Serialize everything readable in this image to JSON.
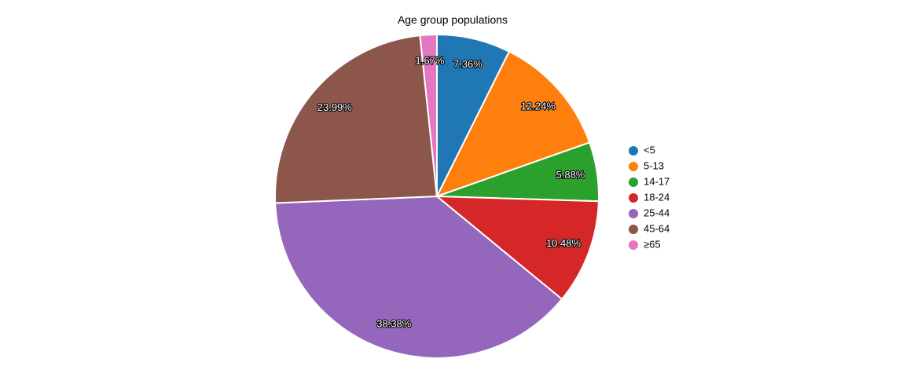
{
  "chart_data": {
    "type": "pie",
    "title": "Age group populations",
    "categories": [
      "<5",
      "5-13",
      "14-17",
      "18-24",
      "25-44",
      "45-64",
      "≥65"
    ],
    "values": [
      7.36,
      12.24,
      5.88,
      10.48,
      38.38,
      23.99,
      1.67
    ],
    "labels": [
      "7.36%",
      "12.24%",
      "5.88%",
      "10.48%",
      "38.38%",
      "23.99%",
      "1.67%"
    ],
    "colors": [
      "#1f77b4",
      "#ff7f0e",
      "#2ca02c",
      "#d62728",
      "#9467bd",
      "#8c564b",
      "#e377c2"
    ],
    "legend": {
      "position": "right",
      "entries": [
        "<5",
        "5-13",
        "14-17",
        "18-24",
        "25-44",
        "45-64",
        "≥65"
      ]
    }
  }
}
